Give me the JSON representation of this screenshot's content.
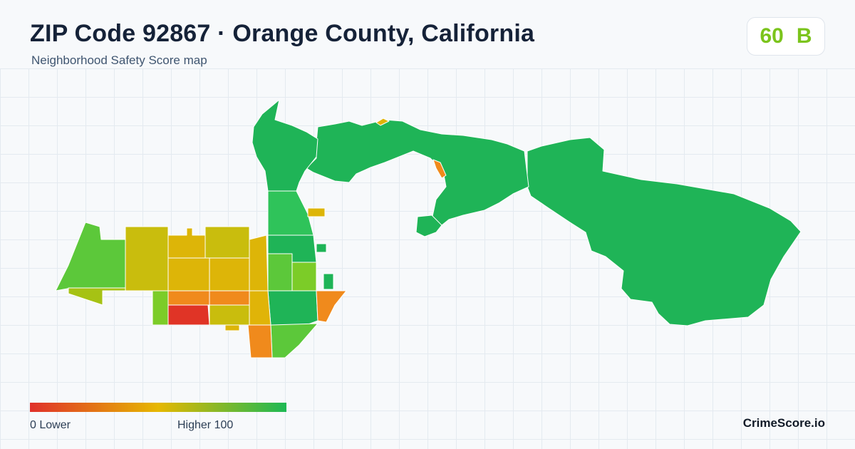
{
  "header": {
    "title": "ZIP Code 92867 · Orange County, California",
    "subtitle": "Neighborhood Safety Score map"
  },
  "score": {
    "value": "60",
    "grade": "B",
    "color": "#7bc41c"
  },
  "legend": {
    "low_label": "0  Lower",
    "high_label": "Higher  100",
    "color_low": "#e0302a",
    "color_mid": "#e6b800",
    "color_high": "#1db954"
  },
  "footer": {
    "brand": "CrimeScore.io"
  },
  "map_colors": {
    "green": "#1fb457",
    "bright_green": "#2fc35a",
    "light_green": "#5cc83a",
    "lime": "#7ccc28",
    "olive": "#a6c214",
    "yellow_olive": "#c9bd0d",
    "gold": "#ddb508",
    "orange": "#f08a1c",
    "red": "#e03426"
  }
}
